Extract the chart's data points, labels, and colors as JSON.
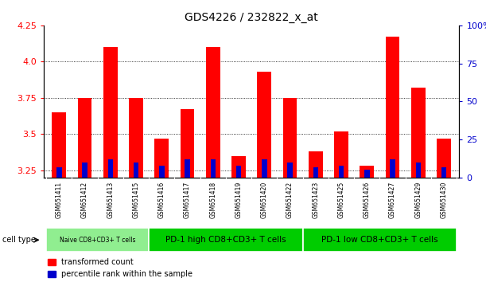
{
  "title": "GDS4226 / 232822_x_at",
  "samples": [
    "GSM651411",
    "GSM651412",
    "GSM651413",
    "GSM651415",
    "GSM651416",
    "GSM651417",
    "GSM651418",
    "GSM651419",
    "GSM651420",
    "GSM651422",
    "GSM651423",
    "GSM651425",
    "GSM651426",
    "GSM651427",
    "GSM651429",
    "GSM651430"
  ],
  "transformed_count": [
    3.65,
    3.75,
    4.1,
    3.75,
    3.47,
    3.67,
    4.1,
    3.35,
    3.93,
    3.75,
    3.38,
    3.52,
    3.28,
    4.17,
    3.82,
    3.47
  ],
  "percentile_rank": [
    7,
    10,
    12,
    10,
    8,
    12,
    12,
    8,
    12,
    10,
    7,
    8,
    5,
    12,
    10,
    7
  ],
  "ylim_left": [
    3.2,
    4.25
  ],
  "ylim_right": [
    0,
    100
  ],
  "yticks_left": [
    3.25,
    3.5,
    3.75,
    4.0,
    4.25
  ],
  "yticks_right": [
    0,
    25,
    50,
    75,
    100
  ],
  "bar_color_red": "#FF0000",
  "bar_color_blue": "#0000CC",
  "cell_type_groups": [
    {
      "label": "Naive CD8+CD3+ T cells",
      "start": 0,
      "end": 4,
      "color": "#90EE90"
    },
    {
      "label": "PD-1 high CD8+CD3+ T cells",
      "start": 4,
      "end": 10,
      "color": "#00CC00"
    },
    {
      "label": "PD-1 low CD8+CD3+ T cells",
      "start": 10,
      "end": 16,
      "color": "#00CC00"
    }
  ],
  "bar_width": 0.55,
  "blue_bar_width": 0.2,
  "background_color": "#FFFFFF",
  "plot_bg_color": "#FFFFFF",
  "grid_color": "#000000",
  "tick_color_left": "#FF0000",
  "tick_color_right": "#0000CC",
  "xlabel_bg": "#D3D3D3",
  "naive_color": "#90EE90",
  "pd1_high_color": "#00CC00",
  "pd1_low_color": "#00CC00"
}
